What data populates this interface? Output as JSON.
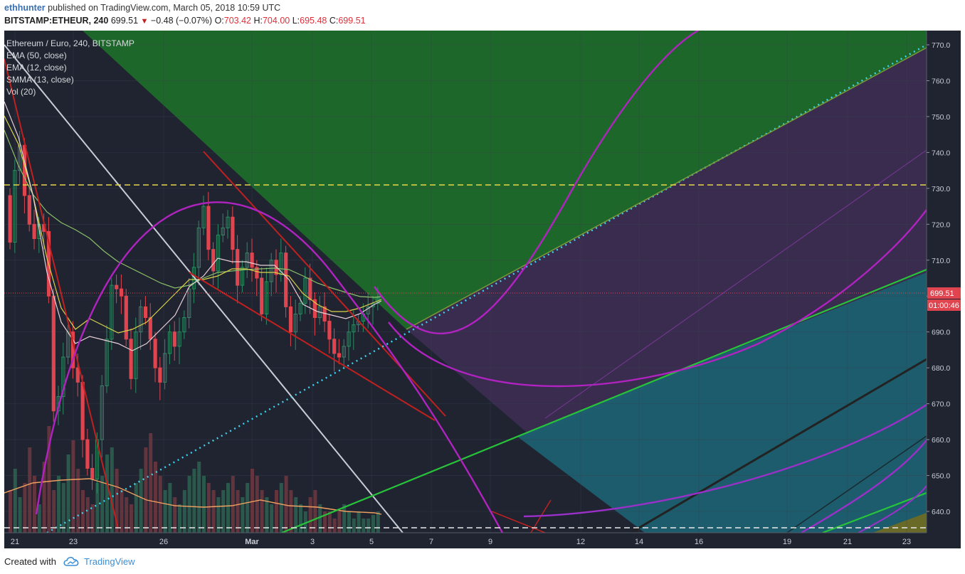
{
  "header": {
    "user": "ethhunter",
    "published_text": " published on TradingView.com, March 05, 2018 10:59 UTC",
    "symbol": "BITSTAMP:ETHEUR, 240",
    "last": "699.51",
    "arrow": "▼",
    "change": "−0.48 (−0.07%)",
    "o_label": "O:",
    "o_val": "703.42",
    "h_label": "H:",
    "h_val": "704.00",
    "l_label": "L:",
    "l_val": "695.48",
    "c_label": "C:",
    "c_val": "699.51"
  },
  "legend": {
    "title": "Ethereum / Euro, 240, BITSTAMP",
    "ind1": "EMA (50, close)",
    "ind2": "EMA (12, close)",
    "ind3": "SMMA (13, close)",
    "ind4": "Vol (20)"
  },
  "price_tag": {
    "value": "699.51",
    "countdown": "01:00:46",
    "color": "#e0454f"
  },
  "footer": {
    "made": "Created with",
    "brand": "TradingView"
  },
  "colors": {
    "background": "#1f2430",
    "bull": "#2e8b63",
    "bear": "#e0454f",
    "green_zone": "#1f6b2a",
    "purple_zone": "#44305a",
    "teal_zone": "#1d6070"
  },
  "chart_data": {
    "type": "candlestick",
    "title": "Ethereum / Euro, 240, BITSTAMP",
    "ylim": [
      632,
      774
    ],
    "y_ticks": [
      640,
      650,
      660,
      670,
      680,
      690,
      700,
      710,
      720,
      730,
      740,
      750,
      760,
      770
    ],
    "x_ticks": [
      "21",
      "23",
      "26",
      "Mar",
      "3",
      "5",
      "7",
      "9",
      "12",
      "14",
      "16",
      "19",
      "21",
      "23"
    ],
    "last_price": 699.51,
    "ohlc": {
      "open": 703.42,
      "high": 704.0,
      "low": 695.48,
      "close": 699.51
    },
    "horizontal_levels": [
      730.5,
      634
    ]
  }
}
